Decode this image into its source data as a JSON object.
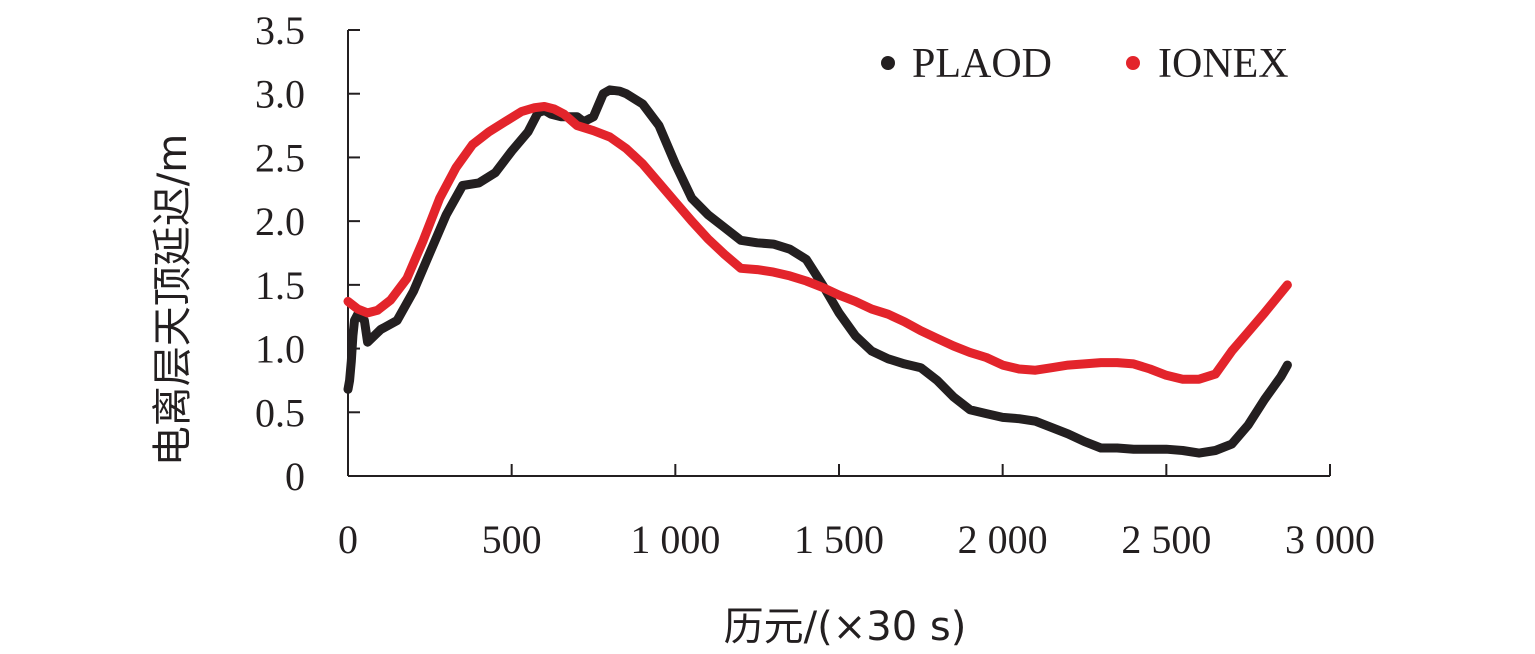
{
  "chart_data": {
    "type": "line",
    "xlabel": "历元/(×30 s)",
    "ylabel": "电离层天顶延迟/m",
    "xlim": [
      0,
      3000
    ],
    "ylim": [
      0,
      3.5
    ],
    "x_ticks": [
      0,
      500,
      1000,
      1500,
      2000,
      2500,
      3000
    ],
    "x_tick_labels": [
      "0",
      "500",
      "1 000",
      "1 500",
      "2 000",
      "2 500",
      "3 000"
    ],
    "y_ticks": [
      0,
      0.5,
      1.0,
      1.5,
      2.0,
      2.5,
      3.0,
      3.5
    ],
    "y_tick_labels": [
      "0",
      "0.5",
      "1.0",
      "1.5",
      "2.0",
      "2.5",
      "3.0",
      "3.5"
    ],
    "grid": false,
    "legend_position": "top-right",
    "series": [
      {
        "name": "PLAOD",
        "color": "#231f20",
        "x": [
          0,
          5,
          10,
          15,
          20,
          30,
          50,
          60,
          80,
          100,
          150,
          200,
          250,
          300,
          350,
          400,
          450,
          500,
          550,
          580,
          600,
          620,
          650,
          700,
          720,
          750,
          780,
          800,
          830,
          850,
          900,
          950,
          1000,
          1050,
          1100,
          1150,
          1200,
          1250,
          1300,
          1350,
          1400,
          1450,
          1500,
          1550,
          1600,
          1650,
          1700,
          1750,
          1800,
          1850,
          1900,
          1950,
          2000,
          2050,
          2100,
          2150,
          2200,
          2250,
          2300,
          2350,
          2400,
          2450,
          2500,
          2550,
          2600,
          2650,
          2700,
          2750,
          2800,
          2850,
          2870
        ],
        "y": [
          0.68,
          0.75,
          0.9,
          1.1,
          1.22,
          1.27,
          1.22,
          1.05,
          1.1,
          1.15,
          1.22,
          1.45,
          1.75,
          2.05,
          2.28,
          2.3,
          2.38,
          2.55,
          2.7,
          2.85,
          2.87,
          2.84,
          2.82,
          2.82,
          2.78,
          2.82,
          3.0,
          3.03,
          3.02,
          3.0,
          2.92,
          2.75,
          2.45,
          2.18,
          2.05,
          1.95,
          1.85,
          1.83,
          1.82,
          1.78,
          1.7,
          1.5,
          1.28,
          1.1,
          0.98,
          0.92,
          0.88,
          0.85,
          0.75,
          0.62,
          0.52,
          0.49,
          0.46,
          0.45,
          0.43,
          0.38,
          0.33,
          0.27,
          0.22,
          0.22,
          0.21,
          0.21,
          0.21,
          0.2,
          0.18,
          0.2,
          0.25,
          0.4,
          0.6,
          0.78,
          0.87
        ]
      },
      {
        "name": "IONEX",
        "color": "#e3242b",
        "x": [
          0,
          30,
          60,
          90,
          130,
          180,
          230,
          280,
          330,
          380,
          430,
          480,
          530,
          570,
          600,
          630,
          660,
          700,
          750,
          800,
          850,
          900,
          950,
          1000,
          1050,
          1100,
          1150,
          1200,
          1250,
          1300,
          1350,
          1400,
          1450,
          1500,
          1550,
          1600,
          1650,
          1700,
          1750,
          1800,
          1850,
          1900,
          1950,
          2000,
          2050,
          2100,
          2150,
          2200,
          2250,
          2300,
          2350,
          2400,
          2450,
          2500,
          2550,
          2600,
          2650,
          2700,
          2750,
          2800,
          2870
        ],
        "y": [
          1.37,
          1.31,
          1.28,
          1.3,
          1.38,
          1.55,
          1.85,
          2.18,
          2.42,
          2.6,
          2.7,
          2.78,
          2.86,
          2.89,
          2.9,
          2.88,
          2.84,
          2.75,
          2.71,
          2.66,
          2.57,
          2.45,
          2.3,
          2.15,
          2.0,
          1.86,
          1.74,
          1.63,
          1.62,
          1.6,
          1.57,
          1.53,
          1.48,
          1.42,
          1.37,
          1.31,
          1.27,
          1.21,
          1.14,
          1.08,
          1.02,
          0.97,
          0.93,
          0.87,
          0.84,
          0.83,
          0.85,
          0.87,
          0.88,
          0.89,
          0.89,
          0.88,
          0.84,
          0.79,
          0.76,
          0.76,
          0.8,
          0.98,
          1.13,
          1.28,
          1.5
        ]
      }
    ]
  }
}
